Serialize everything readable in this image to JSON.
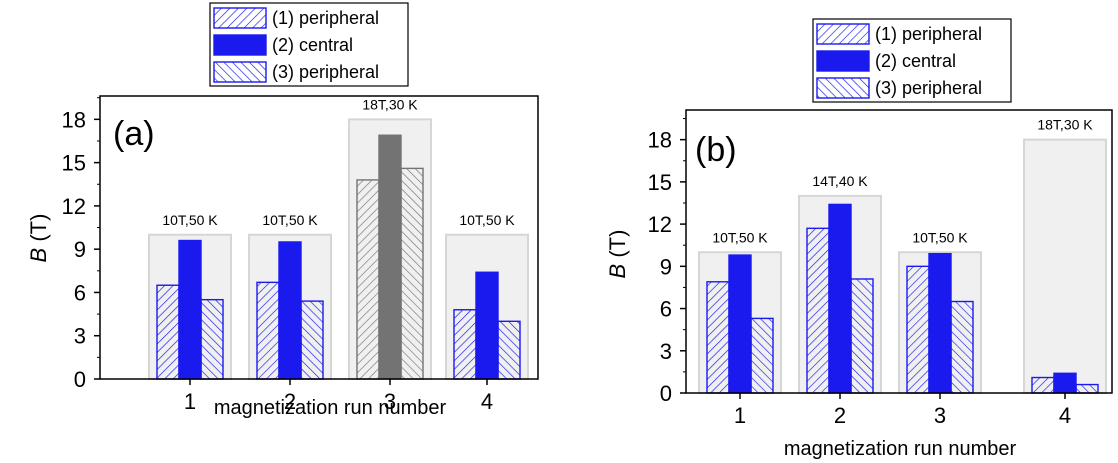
{
  "chart_data": [
    {
      "type": "bar",
      "panel_label": "(a)",
      "categories": [
        "1",
        "2",
        "3",
        "4"
      ],
      "series": [
        {
          "name": "(1) peripheral",
          "values": [
            6.5,
            6.7,
            13.8,
            4.8
          ]
        },
        {
          "name": "(2) central",
          "values": [
            9.6,
            9.5,
            16.9,
            7.4
          ]
        },
        {
          "name": "(3) peripheral",
          "values": [
            5.5,
            5.4,
            14.6,
            4.0
          ]
        }
      ],
      "run_conditions": [
        {
          "label": "10T,50 K",
          "field": 10
        },
        {
          "label": "10T,50 K",
          "field": 10
        },
        {
          "label": "18T,30 K",
          "field": 18
        },
        {
          "label": "10T,50 K",
          "field": 10
        }
      ],
      "highlight_category": "3",
      "xlabel": "magnetization run number",
      "ylabel_symbol": "B",
      "ylabel_unit": "(T)",
      "ylim": [
        0,
        20
      ],
      "yticks": [
        0,
        3,
        6,
        9,
        12,
        15,
        18
      ],
      "legend_position": "top"
    },
    {
      "type": "bar",
      "panel_label": "(b)",
      "categories": [
        "1",
        "2",
        "3",
        "4"
      ],
      "series": [
        {
          "name": "(1) peripheral",
          "values": [
            7.9,
            11.7,
            9.0,
            1.1
          ]
        },
        {
          "name": "(2) central",
          "values": [
            9.8,
            13.4,
            9.9,
            1.4
          ]
        },
        {
          "name": "(3) peripheral",
          "values": [
            5.3,
            8.1,
            6.5,
            0.6
          ]
        }
      ],
      "run_conditions": [
        {
          "label": "10T,50 K",
          "field": 10
        },
        {
          "label": "14T,40 K",
          "field": 14
        },
        {
          "label": "10T,50 K",
          "field": 10
        },
        {
          "label": "18T,30 K",
          "field": 18
        }
      ],
      "xlabel": "magnetization run number",
      "ylabel_symbol": "B",
      "ylabel_unit": "(T)",
      "ylim": [
        0,
        20
      ],
      "yticks": [
        0,
        3,
        6,
        9,
        12,
        15,
        18
      ],
      "legend_position": "top"
    }
  ],
  "colors": {
    "blue": "#1a1aef",
    "gray": "#737373",
    "envelope_fill": "#f0f0f0",
    "envelope_stroke": "#d6d6d6"
  }
}
